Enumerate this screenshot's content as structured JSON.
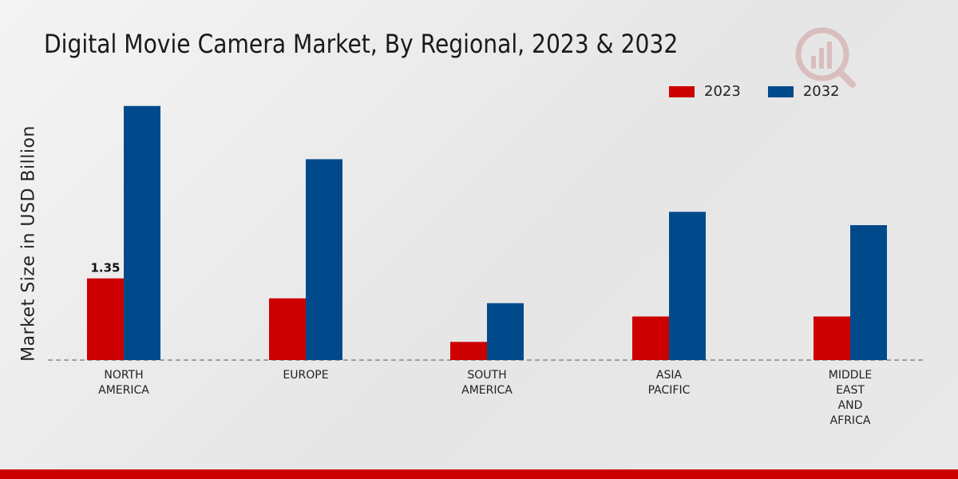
{
  "chart_data": {
    "type": "bar",
    "title": "Digital Movie Camera Market, By Regional, 2023 & 2032",
    "xlabel": "",
    "ylabel": "Market Size in USD Billion",
    "categories": [
      [
        "NORTH",
        "AMERICA"
      ],
      [
        "EUROPE"
      ],
      [
        "SOUTH",
        "AMERICA"
      ],
      [
        "ASIA",
        "PACIFIC"
      ],
      [
        "MIDDLE",
        "EAST",
        "AND",
        "AFRICA"
      ]
    ],
    "series": [
      {
        "name": "2023",
        "color": "#cc0000",
        "values": [
          1.35,
          1.02,
          0.3,
          0.72,
          0.72
        ]
      },
      {
        "name": "2032",
        "color": "#004a8c",
        "values": [
          4.2,
          3.32,
          0.94,
          2.45,
          2.23
        ]
      }
    ],
    "data_labels": [
      {
        "series": 0,
        "index": 0,
        "text": "1.35"
      }
    ],
    "ylim": [
      0,
      4.5
    ],
    "grid": false,
    "legend": "top-right"
  }
}
